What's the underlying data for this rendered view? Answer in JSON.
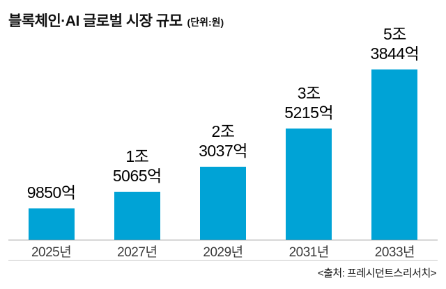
{
  "header": {
    "title": "블록체인·AI 글로벌 시장 규모",
    "unit": "(단위:원)"
  },
  "source": "<출처: 프레시던트스리서치>",
  "colors": {
    "bar": "#00a3d6"
  },
  "chart_data": {
    "type": "bar",
    "title": "블록체인·AI 글로벌 시장 규모 (단위:원)",
    "categories": [
      "2025년",
      "2027년",
      "2029년",
      "2031년",
      "2033년"
    ],
    "values": [
      9850,
      15065,
      23037,
      35215,
      53844
    ],
    "unit": "억 원",
    "value_labels": [
      [
        "9850억"
      ],
      [
        "1조",
        "5065억"
      ],
      [
        "2조",
        "3037억"
      ],
      [
        "3조",
        "5215억"
      ],
      [
        "5조",
        "3844억"
      ]
    ],
    "xlabel": "",
    "ylabel": "",
    "ylim": [
      0,
      55000
    ],
    "grid": false,
    "legend": false
  }
}
